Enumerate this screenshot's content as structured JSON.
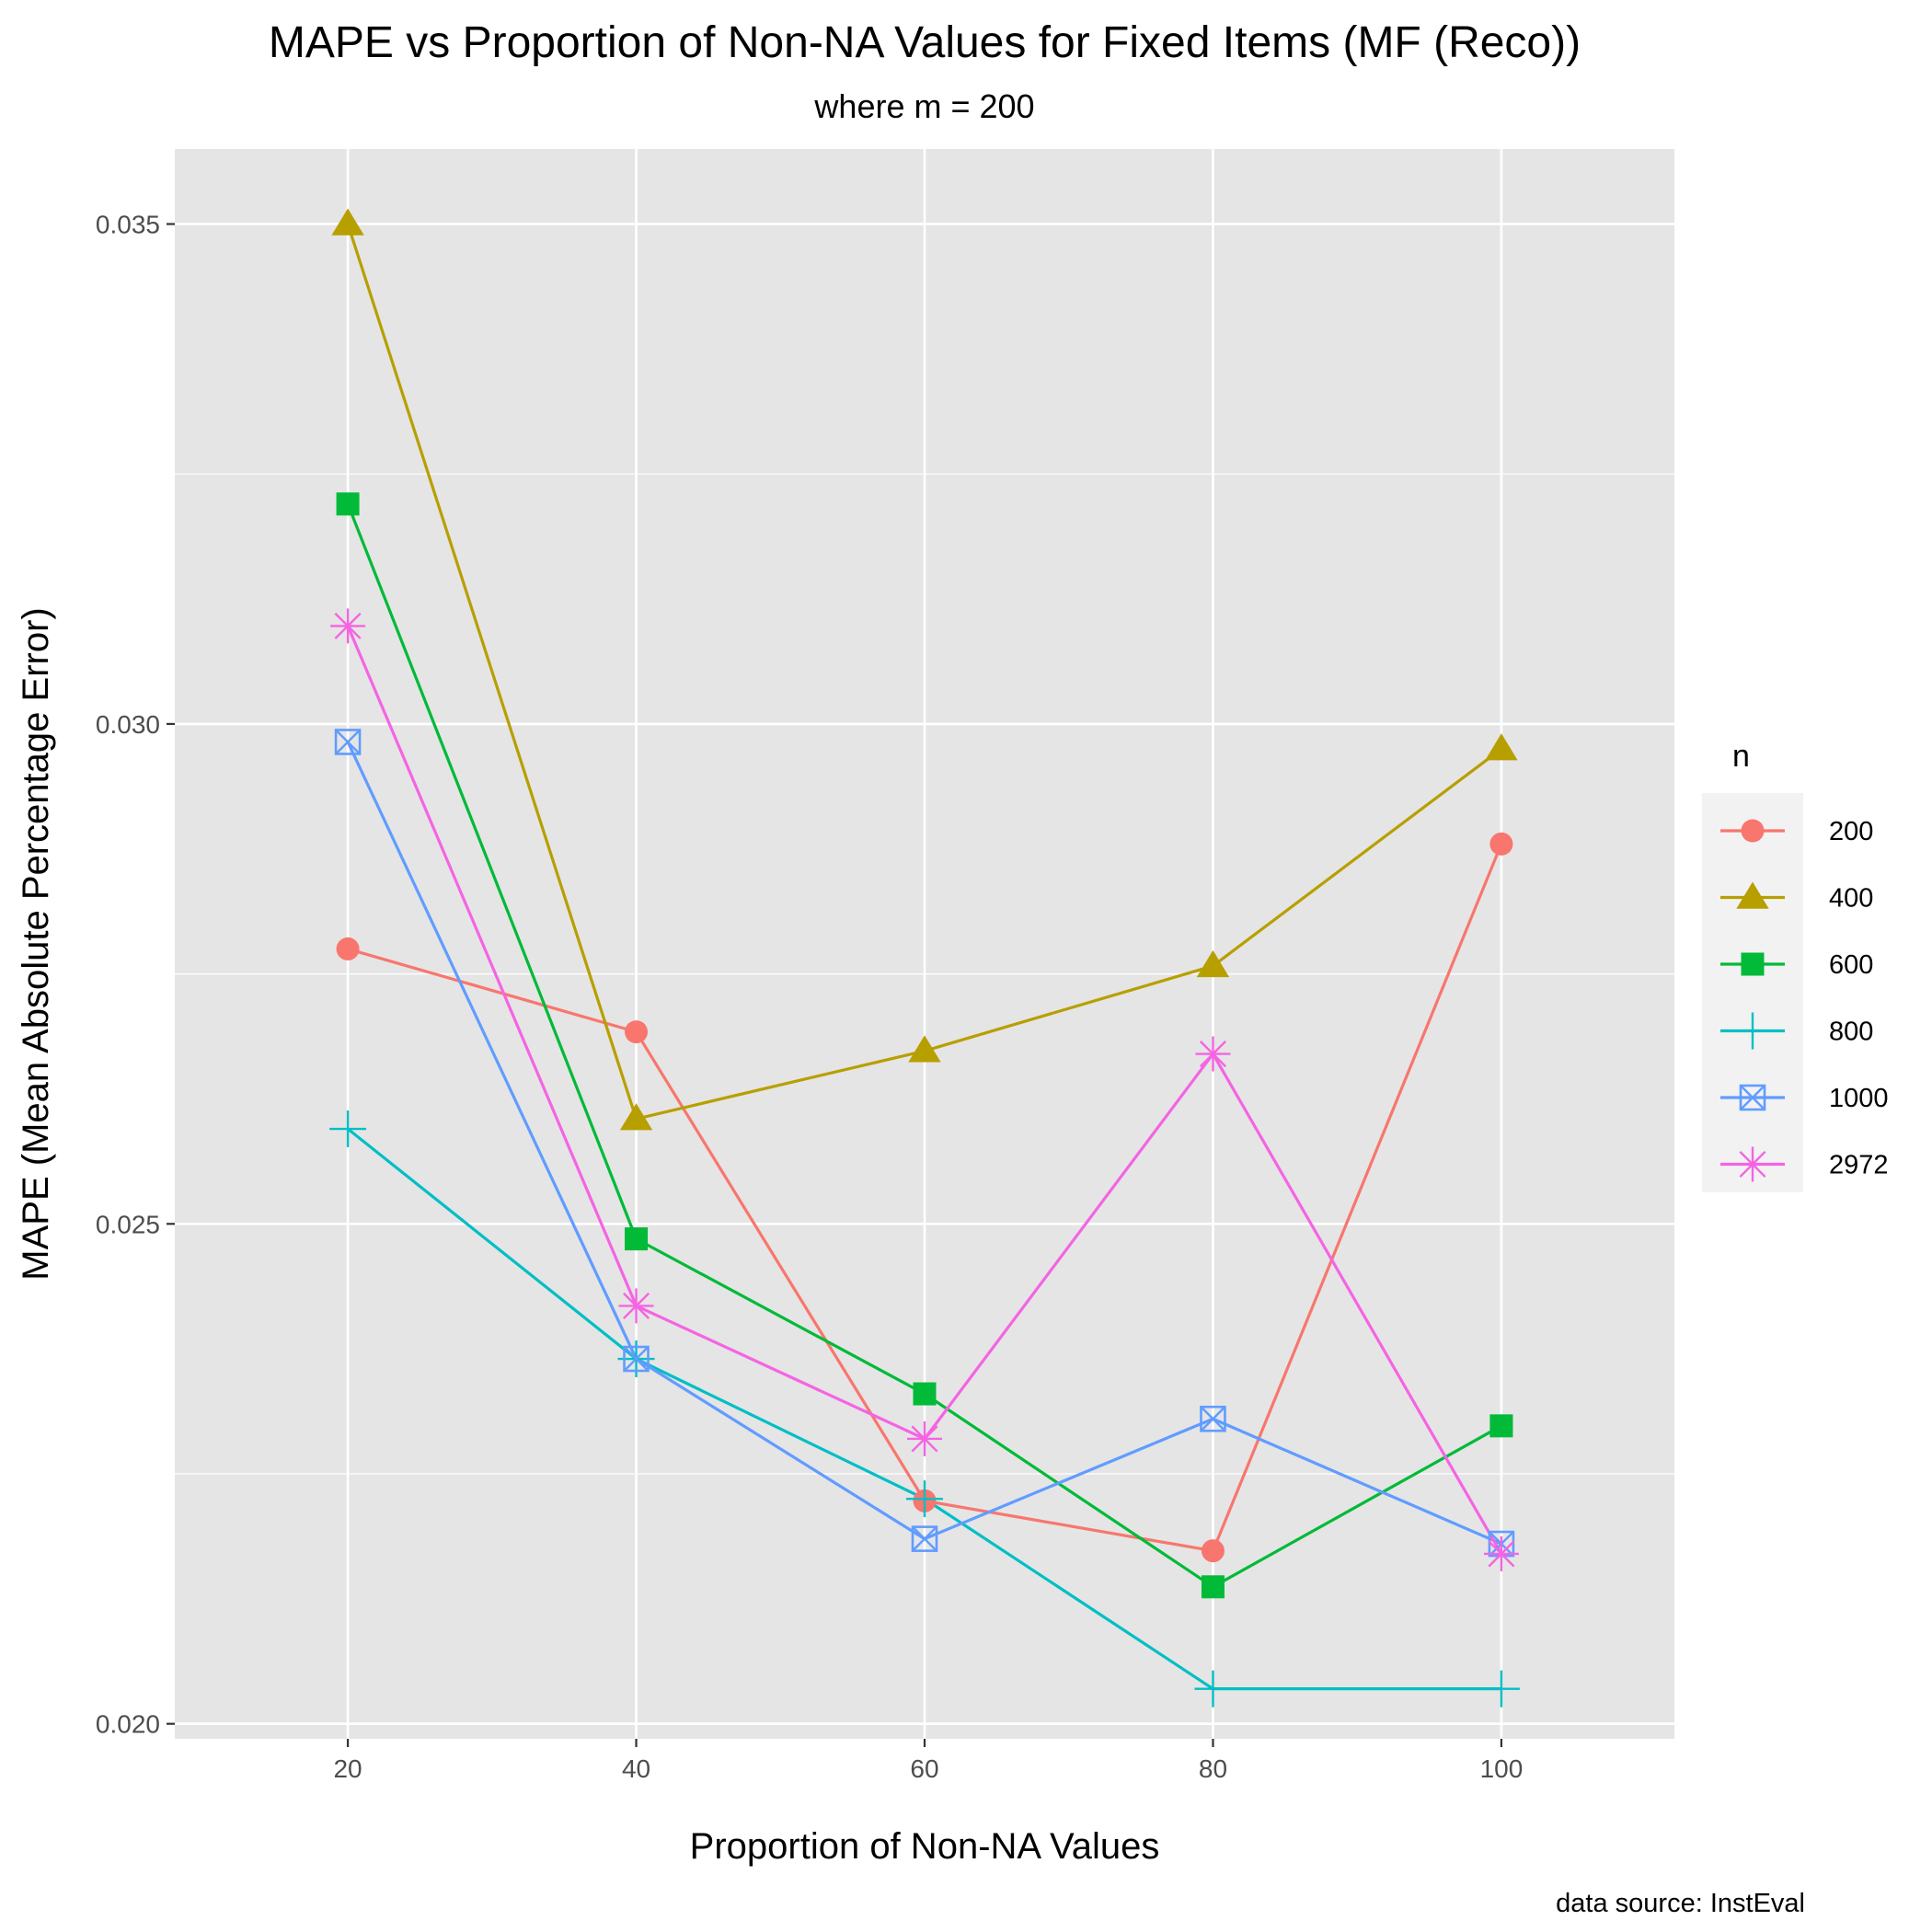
{
  "chart_data": {
    "type": "line",
    "title": "MAPE vs Proportion of Non-NA Values for Fixed Items (MF (Reco))",
    "subtitle": "where m = 200",
    "xlabel": "Proportion of Non-NA Values",
    "ylabel": "MAPE (Mean Absolute Percentage Error)",
    "caption": "data source: InstEval",
    "x": [
      20,
      40,
      60,
      80,
      100
    ],
    "xlim": [
      8,
      112
    ],
    "ylim": [
      0.01985,
      0.03575
    ],
    "x_ticks": [
      20,
      40,
      60,
      80,
      100
    ],
    "x_tick_labels": [
      "20",
      "40",
      "60",
      "80",
      "100"
    ],
    "y_ticks": [
      0.02,
      0.025,
      0.03,
      0.035
    ],
    "y_tick_labels": [
      "0.020",
      "0.025",
      "0.030",
      "0.035"
    ],
    "y_minor_ticks": [
      0.0225,
      0.0275,
      0.0325
    ],
    "grid": true,
    "background": "#e5e5e5",
    "legend": {
      "title": "n",
      "position": "right"
    },
    "series": [
      {
        "name": "200",
        "color": "#F8766D",
        "shape": "circle",
        "values": [
          0.02775,
          0.02692,
          0.02223,
          0.02173,
          0.0288
        ]
      },
      {
        "name": "400",
        "color": "#B79F00",
        "shape": "triangle",
        "values": [
          0.035,
          0.02605,
          0.02673,
          0.02758,
          0.02975
        ]
      },
      {
        "name": "600",
        "color": "#00BA38",
        "shape": "square",
        "values": [
          0.0322,
          0.02485,
          0.0233,
          0.02137,
          0.02298
        ]
      },
      {
        "name": "800",
        "color": "#00BFC4",
        "shape": "plus",
        "values": [
          0.02595,
          0.02365,
          0.02225,
          0.02035,
          0.02035
        ]
      },
      {
        "name": "1000",
        "color": "#619CFF",
        "shape": "square-cross",
        "values": [
          0.02982,
          0.02365,
          0.02185,
          0.02305,
          0.0218
        ]
      },
      {
        "name": "2972",
        "color": "#F564E3",
        "shape": "asterisk",
        "values": [
          0.03098,
          0.02418,
          0.02285,
          0.0267,
          0.0217
        ]
      }
    ]
  }
}
